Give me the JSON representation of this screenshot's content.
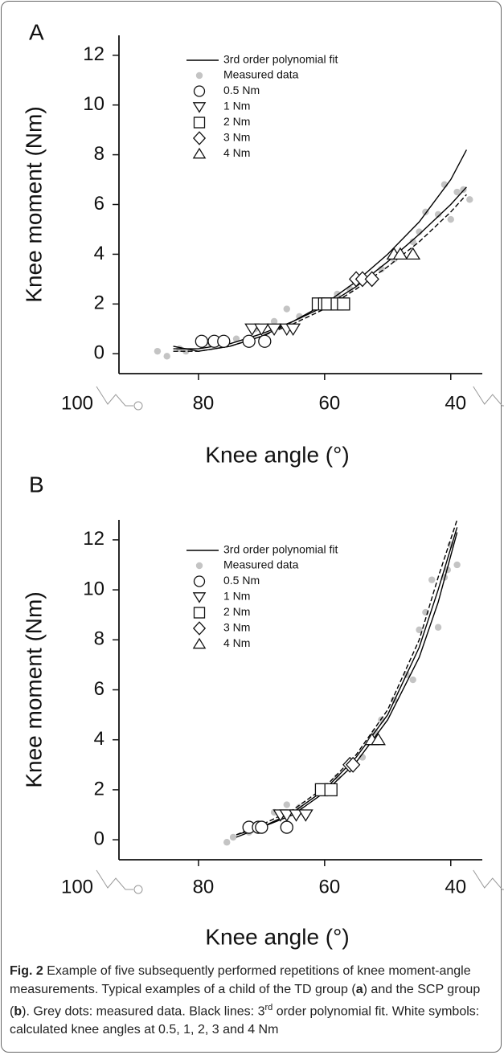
{
  "chart_data": [
    {
      "type": "scatter",
      "panel": "A",
      "ylabel": "Knee moment (Nm)",
      "xlabel": "Knee angle (°)",
      "xlim": [
        100,
        35
      ],
      "ylim": [
        -0.8,
        12.8
      ],
      "xticks": [
        100,
        80,
        60,
        40
      ],
      "yticks": [
        0,
        2,
        4,
        6,
        8,
        10,
        12
      ],
      "legend": "upper left",
      "fit": {
        "name": "3rd order polynomial fit",
        "color": "#000000",
        "x": [
          84,
          80,
          75,
          70,
          65,
          60,
          55,
          50,
          45,
          40,
          37.5
        ],
        "y": [
          [
            0.3,
            0.1,
            0.3,
            0.7,
            1.3,
            2.0,
            2.9,
            4.0,
            5.3,
            7.0,
            8.2
          ],
          [
            0.2,
            0.2,
            0.4,
            0.8,
            1.3,
            1.9,
            2.7,
            3.7,
            4.8,
            6.0,
            6.7
          ],
          [
            0.1,
            0.1,
            0.3,
            0.7,
            1.2,
            1.8,
            2.6,
            3.5,
            4.5,
            5.7,
            6.4
          ]
        ]
      },
      "measured": {
        "name": "Measured data",
        "color": "#c4c4c4",
        "x": [
          86.5,
          85,
          83,
          82,
          78,
          74,
          71,
          68,
          66,
          64,
          60,
          58,
          56,
          54,
          51,
          49,
          46,
          45,
          44,
          42,
          41,
          39,
          38,
          37,
          40
        ],
        "y": [
          0.1,
          -0.1,
          0.2,
          0.1,
          0.4,
          0.6,
          1.0,
          1.3,
          1.8,
          1.5,
          2.1,
          2.4,
          2.6,
          3.1,
          3.4,
          3.8,
          4.5,
          4.9,
          5.7,
          5.6,
          6.8,
          6.5,
          6.6,
          6.2,
          5.4
        ]
      },
      "symbols": [
        {
          "name": "0.5 Nm",
          "marker": "circle",
          "x": [
            79.5,
            77.5,
            76,
            72,
            69.5
          ],
          "y": [
            0.5,
            0.5,
            0.5,
            0.5,
            0.5
          ]
        },
        {
          "name": "1 Nm",
          "marker": "triangle-down",
          "x": [
            71.5,
            70,
            68,
            66,
            65
          ],
          "y": [
            1,
            1,
            1,
            1,
            1
          ]
        },
        {
          "name": "2 Nm",
          "marker": "square",
          "x": [
            61,
            60,
            59.5,
            58,
            57
          ],
          "y": [
            2,
            2,
            2,
            2,
            2
          ]
        },
        {
          "name": "3 Nm",
          "marker": "diamond",
          "x": [
            55,
            54,
            52.5
          ],
          "y": [
            3,
            3,
            3
          ]
        },
        {
          "name": "4 Nm",
          "marker": "triangle-up",
          "x": [
            49,
            48,
            46
          ],
          "y": [
            4,
            4,
            4
          ]
        }
      ]
    },
    {
      "type": "scatter",
      "panel": "B",
      "ylabel": "Knee moment (Nm)",
      "xlabel": "Knee angle (°)",
      "xlim": [
        100,
        35
      ],
      "ylim": [
        -0.8,
        12.8
      ],
      "xticks": [
        100,
        80,
        60,
        40
      ],
      "yticks": [
        0,
        2,
        4,
        6,
        8,
        10,
        12
      ],
      "legend": "upper left",
      "fit": {
        "name": "3rd order polynomial fit",
        "color": "#000000",
        "x": [
          74,
          70,
          65,
          60,
          55,
          50,
          45,
          42,
          39
        ],
        "y": [
          [
            0.2,
            0.5,
            1.1,
            2.0,
            3.3,
            5.0,
            7.7,
            10.0,
            12.5
          ],
          [
            0.1,
            0.5,
            1.0,
            1.9,
            3.1,
            4.8,
            7.3,
            9.5,
            12.3
          ],
          [
            0.2,
            0.6,
            1.2,
            2.1,
            3.4,
            5.2,
            8.0,
            10.5,
            12.8
          ]
        ]
      },
      "measured": {
        "name": "Measured data",
        "color": "#c4c4c4",
        "x": [
          75.5,
          74.5,
          72,
          70,
          68,
          66,
          64,
          61,
          58,
          56,
          54,
          52,
          51,
          49,
          47,
          46,
          45,
          44,
          43,
          42,
          41,
          40,
          39,
          40.5
        ],
        "y": [
          -0.1,
          0.1,
          0.3,
          0.6,
          1.1,
          1.4,
          1.3,
          2.0,
          2.5,
          3.0,
          3.3,
          4.3,
          4.8,
          5.6,
          6.6,
          6.4,
          8.4,
          9.1,
          10.4,
          8.5,
          10.5,
          11.8,
          11.0,
          10.8
        ]
      },
      "symbols": [
        {
          "name": "0.5 Nm",
          "marker": "circle",
          "x": [
            72,
            70.5,
            70,
            66
          ],
          "y": [
            0.5,
            0.5,
            0.5,
            0.5
          ]
        },
        {
          "name": "1 Nm",
          "marker": "triangle-down",
          "x": [
            67,
            66,
            64.5,
            63
          ],
          "y": [
            1,
            1,
            1,
            1
          ]
        },
        {
          "name": "2 Nm",
          "marker": "square",
          "x": [
            60.5,
            59
          ],
          "y": [
            2,
            2
          ]
        },
        {
          "name": "3 Nm",
          "marker": "diamond",
          "x": [
            56,
            55.5
          ],
          "y": [
            3,
            3
          ]
        },
        {
          "name": "4 Nm",
          "marker": "triangle-up",
          "x": [
            52.5,
            51.5
          ],
          "y": [
            4,
            4
          ]
        }
      ]
    }
  ],
  "caption": [
    {
      "text": "Fig. 2",
      "style": "bold"
    },
    {
      "text": " Example of five subsequently performed repetitions of knee moment-angle measurements. Typical examples of a child of the TD group (",
      "style": "normal"
    },
    {
      "text": "a",
      "style": "bold"
    },
    {
      "text": ") and the SCP group (",
      "style": "normal"
    },
    {
      "text": "b",
      "style": "bold"
    },
    {
      "text": "). Grey dots: measured data. Black lines: 3",
      "style": "normal"
    },
    {
      "text": "rd",
      "style": "sup"
    },
    {
      "text": " order polynomial fit. White symbols: calculated knee angles at 0.5, 1, 2, 3 and 4 Nm",
      "style": "normal"
    }
  ]
}
